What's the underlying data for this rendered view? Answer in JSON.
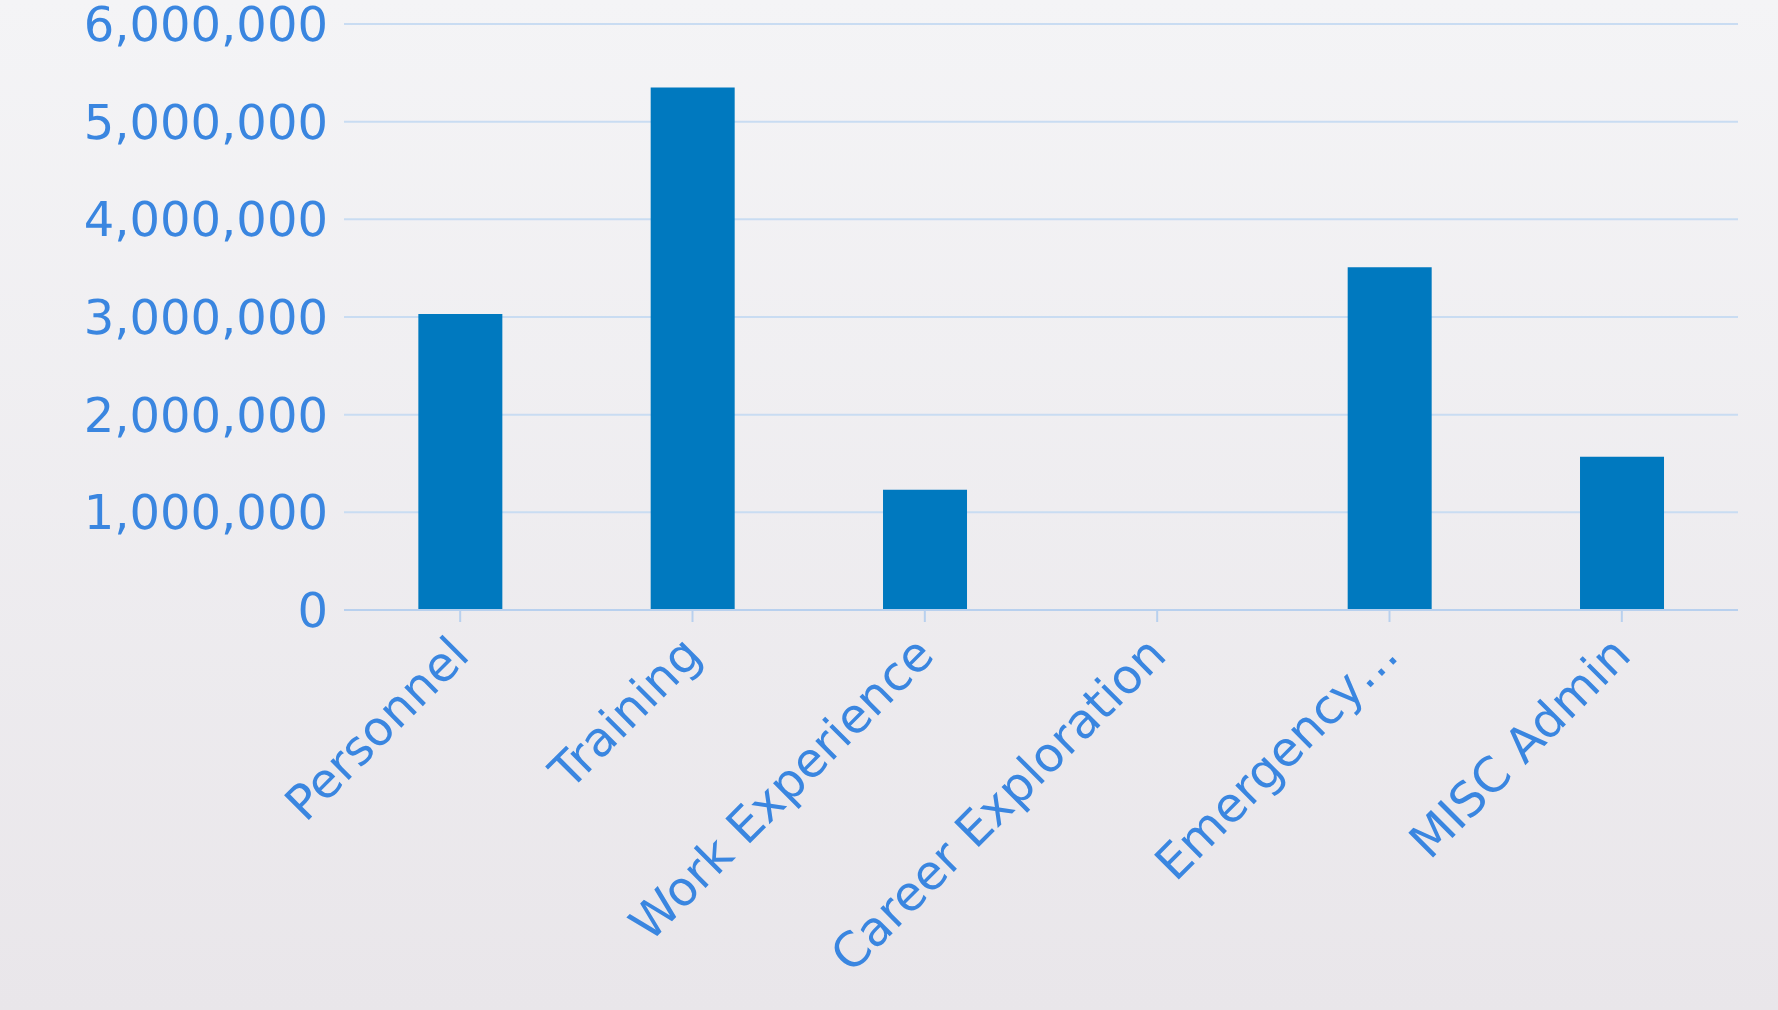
{
  "chart_data": {
    "type": "bar",
    "categories": [
      "Personnel",
      "Training",
      "Work Experience",
      "Career Exploration",
      "Emergency…",
      "MISC Admin"
    ],
    "values": [
      3030000,
      5350000,
      1230000,
      0,
      3510000,
      1570000
    ],
    "color": "#0079bf",
    "ylim": [
      0,
      6000000
    ],
    "yticks": [
      {
        "value": 0,
        "label": "0"
      },
      {
        "value": 1000000,
        "label": "1,000,000"
      },
      {
        "value": 2000000,
        "label": "2,000,000"
      },
      {
        "value": 3000000,
        "label": "3,000,000"
      },
      {
        "value": 4000000,
        "label": "4,000,000"
      },
      {
        "value": 5000000,
        "label": "5,000,000"
      },
      {
        "value": 6000000,
        "label": "6,000,000"
      }
    ],
    "grid": "y"
  }
}
